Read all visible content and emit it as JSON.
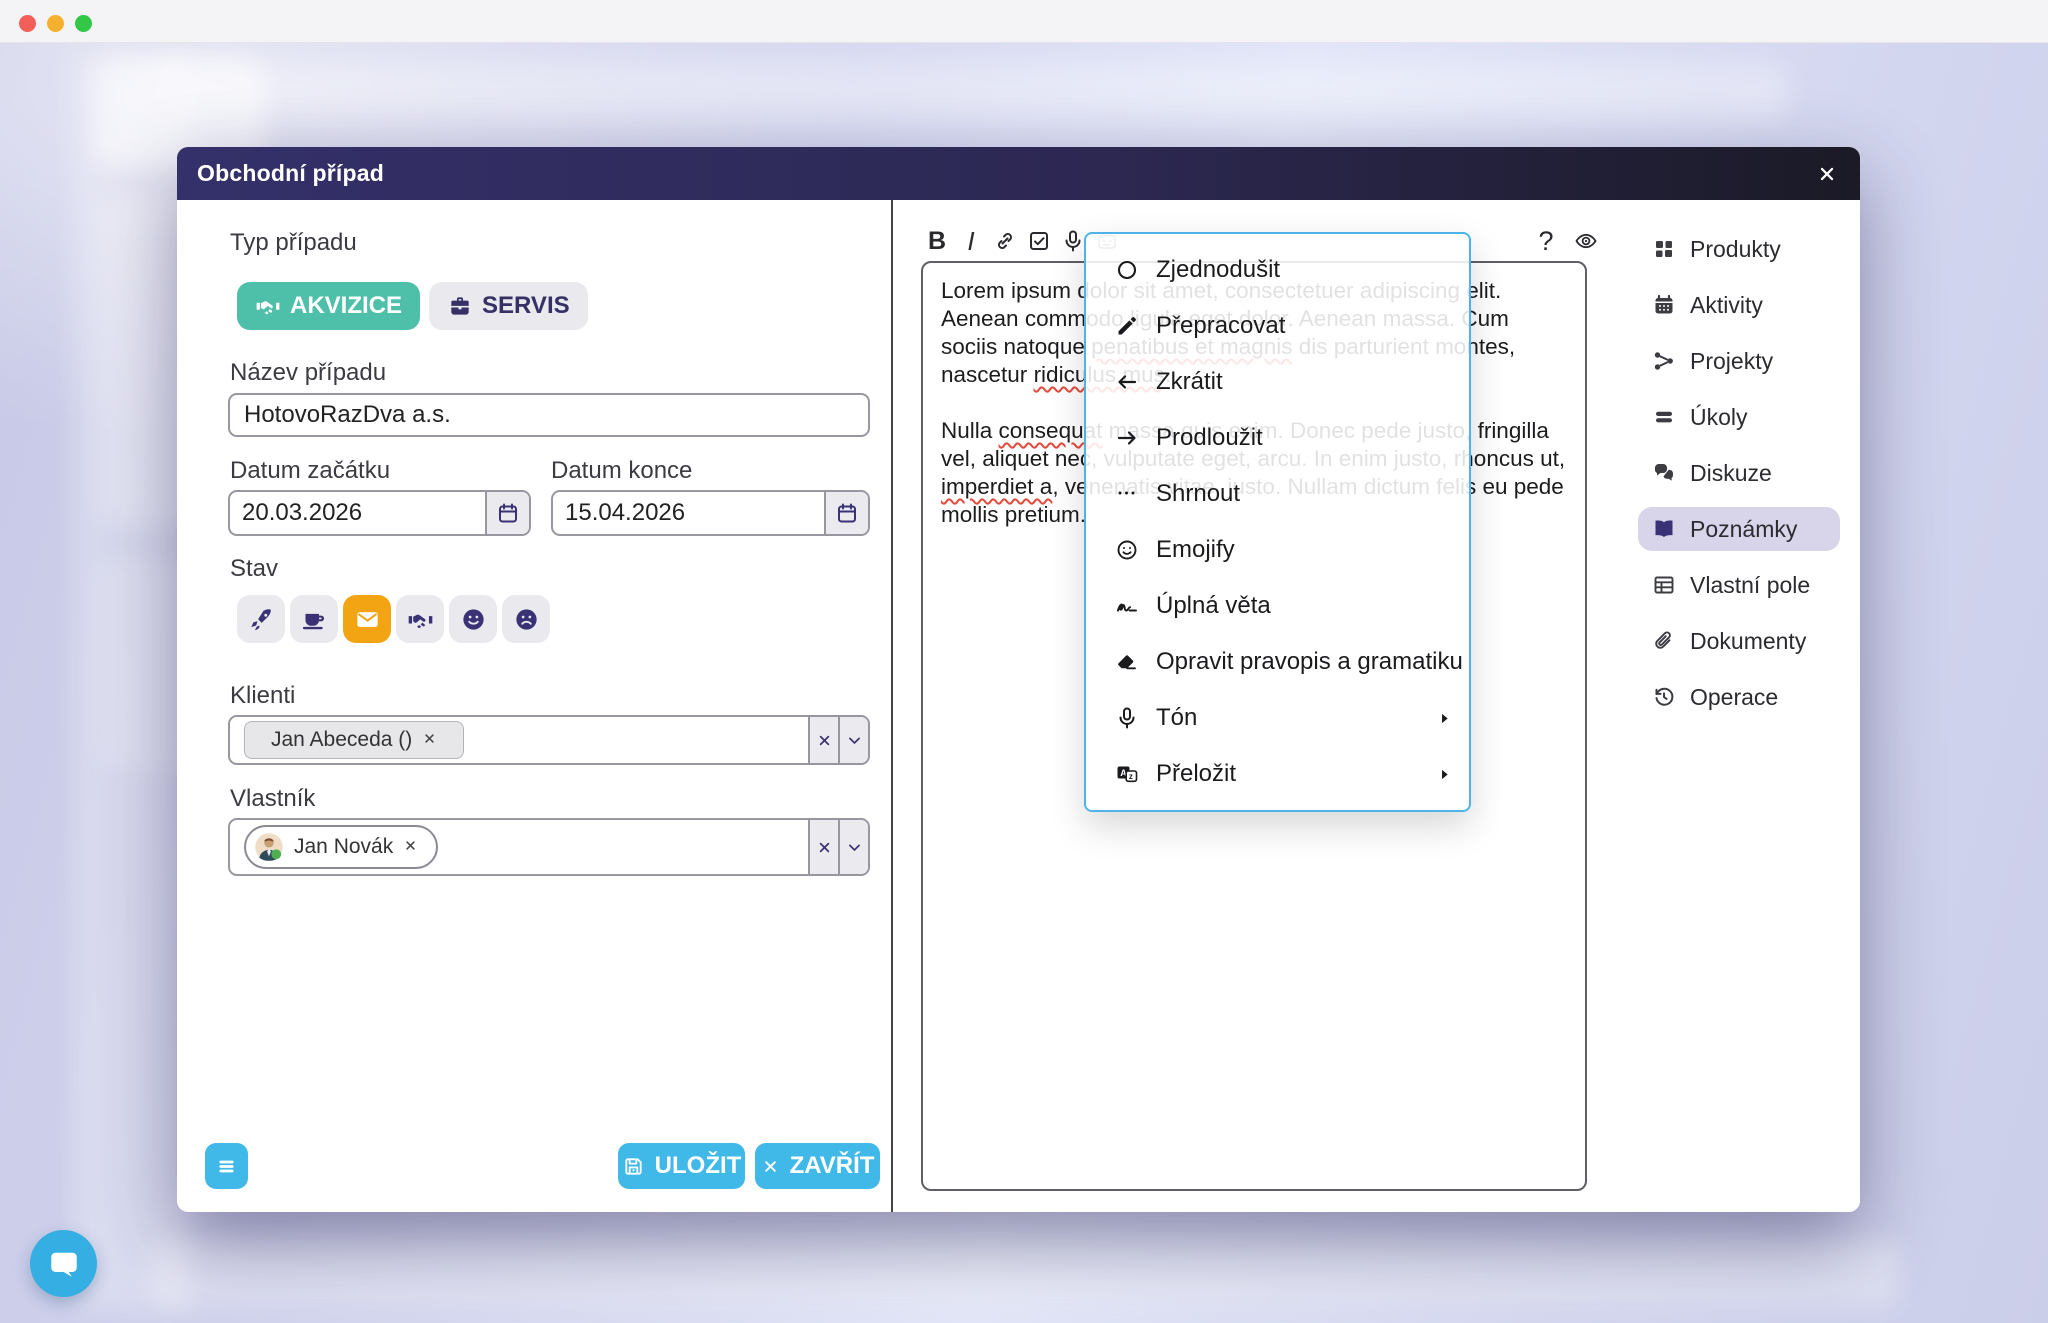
{
  "window": {
    "traffic_lights": [
      {
        "name": "close",
        "color": "#f25f58"
      },
      {
        "name": "minimize",
        "color": "#f5b02f"
      },
      {
        "name": "zoom",
        "color": "#33c748"
      }
    ]
  },
  "modal": {
    "title": "Obchodní případ",
    "close_icon": "x-icon"
  },
  "form": {
    "type": {
      "label": "Typ případu",
      "options": [
        {
          "label": "AKVIZICE",
          "icon": "handshake-icon",
          "selected": true
        },
        {
          "label": "SERVIS",
          "icon": "briefcase-icon",
          "selected": false
        }
      ]
    },
    "name": {
      "label": "Název případu",
      "value": "HotovoRazDva a.s."
    },
    "date_start": {
      "label": "Datum začátku",
      "value": "20.03.2026",
      "icon": "calendar-outline-icon"
    },
    "date_end": {
      "label": "Datum konce",
      "value": "15.04.2026",
      "icon": "calendar-outline-icon"
    },
    "status": {
      "label": "Stav",
      "options": [
        {
          "icon": "rocket-icon",
          "selected": false
        },
        {
          "icon": "coffee-icon",
          "selected": false
        },
        {
          "icon": "envelope-icon",
          "selected": true
        },
        {
          "icon": "handshake-icon",
          "selected": false
        },
        {
          "icon": "smile-solid-icon",
          "selected": false
        },
        {
          "icon": "frown-icon",
          "selected": false
        }
      ],
      "selected_color": "#f2a413"
    },
    "clients": {
      "label": "Klienti",
      "chips": [
        {
          "text": "Jan Abeceda ()",
          "remove_icon": "x-icon",
          "avatar": false
        }
      ],
      "controls": [
        "x-icon",
        "chevron-down-icon"
      ]
    },
    "owner": {
      "label": "Vlastník",
      "chips": [
        {
          "text": "Jan Novák",
          "remove_icon": "x-icon",
          "avatar": true
        }
      ],
      "controls": [
        "x-icon",
        "chevron-down-icon"
      ]
    }
  },
  "footer": {
    "menu_icon": "hamburger-icon",
    "save": {
      "label": "ULOŽIT",
      "icon": "save-icon"
    },
    "close": {
      "label": "ZAVŘÍT",
      "icon": "x-icon"
    }
  },
  "editor": {
    "toolbar_left": [
      "bold-icon",
      "italic-icon",
      "link-icon",
      "checkbox-icon",
      "mic-icon",
      "robot-icon"
    ],
    "toolbar_right": [
      "help-icon",
      "eye-icon"
    ],
    "paragraphs": [
      "Lorem ipsum dolor sit amet, consectetuer adipiscing elit. Aenean commodo ligula eget dolor. Aenean massa. Cum sociis natoque penatibus et magnis dis parturient montes, nascetur ridiculus mus.",
      "Nulla consequat massa quis enim. Donec pede justo, fringilla vel, aliquet nec, vulputate eget, arcu. In enim justo, rhoncus ut, imperdiet a, venenatis vitae, justo. Nullam dictum felis eu pede mollis pretium."
    ],
    "misspelled": [
      "penatibus et magnis",
      "ridiculus mus",
      "consequat",
      "imperdiet a"
    ]
  },
  "ai_menu": {
    "items": [
      {
        "label": "Zjednodušit",
        "icon": "circle-icon",
        "submenu": false
      },
      {
        "label": "Přepracovat",
        "icon": "pencil-icon",
        "submenu": false
      },
      {
        "label": "Zkrátit",
        "icon": "arrow-left-icon",
        "submenu": false
      },
      {
        "label": "Prodloužit",
        "icon": "arrow-right-icon",
        "submenu": false
      },
      {
        "label": "Shrnout",
        "icon": "ellipsis-icon",
        "submenu": false
      },
      {
        "label": "Emojify",
        "icon": "smiley-icon",
        "submenu": false
      },
      {
        "label": "Úplná věta",
        "icon": "signature-icon",
        "submenu": false
      },
      {
        "label": "Opravit pravopis a gramatiku",
        "icon": "eraser-icon",
        "submenu": false
      },
      {
        "label": "Tón",
        "icon": "mic-icon",
        "submenu": true
      },
      {
        "label": "Přeložit",
        "icon": "translate-icon",
        "submenu": true
      }
    ]
  },
  "sidebar": {
    "items": [
      {
        "label": "Produkty",
        "icon": "grid-icon",
        "active": false
      },
      {
        "label": "Aktivity",
        "icon": "calendar-icon",
        "active": false
      },
      {
        "label": "Projekty",
        "icon": "nodes-icon",
        "active": false
      },
      {
        "label": "Úkoly",
        "icon": "tasks-icon",
        "active": false
      },
      {
        "label": "Diskuze",
        "icon": "chat-icon",
        "active": false
      },
      {
        "label": "Poznámky",
        "icon": "book-icon",
        "active": true
      },
      {
        "label": "Vlastní pole",
        "icon": "table-icon",
        "active": false
      },
      {
        "label": "Dokumenty",
        "icon": "paperclip-icon",
        "active": false
      },
      {
        "label": "Operace",
        "icon": "history-icon",
        "active": false
      }
    ]
  },
  "fab": {
    "icon": "chat-bubble-icon"
  },
  "colors": {
    "accent_blue": "#41b9e8",
    "teal": "#4ebfa9",
    "orange": "#f2a413",
    "purple": "#3a3274",
    "header_dark": "#1b1a26",
    "menu_border": "#4fb3e8",
    "active_pill": "#d8d5ea"
  }
}
